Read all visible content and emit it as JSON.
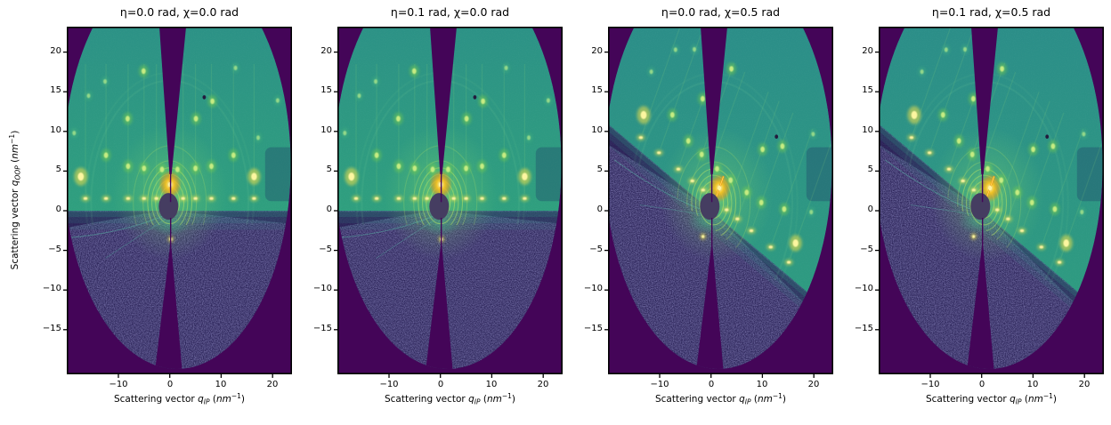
{
  "figure": {
    "background": "#ffffff",
    "colormap": "viridis",
    "panels": [
      {
        "title": "η=0.0 rad, χ=0.0 rad",
        "eta_rad": 0.0,
        "chi_rad": 0.0
      },
      {
        "title": "η=0.1 rad, χ=0.0 rad",
        "eta_rad": 0.1,
        "chi_rad": 0.0
      },
      {
        "title": "η=0.0 rad, χ=0.5 rad",
        "eta_rad": 0.0,
        "chi_rad": 0.5
      },
      {
        "title": "η=0.1 rad, χ=0.5 rad",
        "eta_rad": 0.1,
        "chi_rad": 0.5
      }
    ],
    "axes": {
      "xlabel": {
        "prefix": "Scattering vector ",
        "symbol": "q",
        "subscript": "IP",
        "unit_open": " (",
        "unit": "nm",
        "unit_exp": "−1",
        "unit_close": ")"
      },
      "ylabel": {
        "prefix": "Scattering vector ",
        "symbol": "q",
        "subscript": "OOP",
        "unit_open": " (",
        "unit": "nm",
        "unit_exp": "−1",
        "unit_close": ")"
      },
      "x_ticks": [
        "−10",
        "0",
        "10",
        "20"
      ],
      "y_ticks": [
        "20",
        "15",
        "10",
        "5",
        "0",
        "−5",
        "−10",
        "−15"
      ]
    },
    "colors": {
      "background_low": "#440558",
      "noise_base": "#251D52",
      "teal_mid": "#21918C",
      "green_high": "#7ED04E",
      "yellow_peak": "#F8E621"
    }
  },
  "chart_data": {
    "type": "heatmap",
    "description": "Four simulated GIWAXS detector images (viridis colormap) of the same diffraction pattern for sample rotation angles η = 0.0/0.1 rad and tilt χ = 0.0/0.5 rad; χ rotates the diffraction pattern and sample horizon clockwise about the beam center.",
    "panels": [
      {
        "title": "η=0.0 rad, χ=0.0 rad",
        "eta_rad": 0.0,
        "chi_rad": 0.0
      },
      {
        "title": "η=0.1 rad, χ=0.0 rad",
        "eta_rad": 0.1,
        "chi_rad": 0.0
      },
      {
        "title": "η=0.0 rad, χ=0.5 rad",
        "eta_rad": 0.0,
        "chi_rad": 0.5
      },
      {
        "title": "η=0.1 rad, χ=0.5 rad",
        "eta_rad": 0.1,
        "chi_rad": 0.5
      }
    ],
    "xlabel": "Scattering vector q_IP (nm⁻¹)",
    "ylabel": "Scattering vector q_OOP (nm⁻¹)",
    "xlim": [
      -20.0,
      23.8
    ],
    "ylim": [
      -20.6,
      23.2
    ],
    "x_ticks": [
      -10,
      0,
      10,
      20
    ],
    "y_ticks": [
      20,
      15,
      10,
      5,
      0,
      -5,
      -10,
      -15
    ],
    "colormap": "viridis",
    "features": {
      "beam_center_q": [
        0,
        0
      ],
      "center_peak": [
        0.05,
        3.3
      ],
      "center_streak": [
        [
          0.05,
          2.0
        ],
        [
          0.05,
          4.9
        ]
      ],
      "beamstop_q": [
        -0.25,
        0.55
      ],
      "bright_spots": [
        [
          -17.3,
          4.3
        ],
        [
          16.4,
          4.3
        ],
        [
          0.2,
          -3.6
        ]
      ],
      "horizon_row_y": 1.55,
      "horizon_row_x": [
        -16.4,
        -12.4,
        -8.1,
        -5.0,
        -2.6,
        2.6,
        5.0,
        8.1,
        12.4,
        16.4
      ],
      "green_spots": [
        [
          -12.4,
          7.0
        ],
        [
          12.4,
          7.0
        ],
        [
          -8.1,
          5.6
        ],
        [
          8.1,
          5.6
        ],
        [
          -5.0,
          5.35
        ],
        [
          5.0,
          5.35
        ],
        [
          -1.5,
          5.2
        ],
        [
          1.5,
          5.2
        ],
        [
          -8.2,
          11.6
        ],
        [
          5.1,
          11.6
        ],
        [
          8.3,
          13.8
        ],
        [
          -5.1,
          17.6
        ]
      ],
      "dim_spots": [
        [
          -15.8,
          14.5
        ],
        [
          -12.6,
          16.3
        ],
        [
          12.8,
          18.0
        ],
        [
          21.0,
          13.9
        ],
        [
          17.2,
          9.2
        ],
        [
          -18.6,
          9.8
        ]
      ],
      "dark_pixel": [
        6.7,
        14.3
      ],
      "rod_columns_x": [
        -16.4,
        -12.4,
        -8.1,
        -5.0,
        -2.6,
        2.6,
        5.0,
        8.1,
        12.4,
        16.4
      ],
      "rod_y_range": [
        2.2,
        18.5
      ],
      "ring_center": [
        0,
        1.1
      ],
      "ring_radii": [
        1.9,
        2.75,
        3.5,
        4.3,
        5.2,
        7.1
      ],
      "faint_ring_radii": [
        15.3,
        16.3
      ],
      "stray_lines": [
        [
          [
            -0.7,
            -0.5
          ],
          [
            -9,
            -2.8
          ],
          [
            -19.6,
            -3.4
          ]
        ],
        [
          [
            -0.7,
            -1.0
          ],
          [
            -6.5,
            -3.4
          ],
          [
            -12.5,
            -6.0
          ]
        ]
      ],
      "detector_gap_top_q": {
        "top_x": [
          -2.05,
          3.2
        ],
        "apex": [
          0.15,
          4.6
        ]
      },
      "detector_gap_bottom_q": {
        "bottom_x": [
          -3.0,
          2.5
        ],
        "apex": [
          0.18,
          -4.5
        ]
      }
    }
  }
}
